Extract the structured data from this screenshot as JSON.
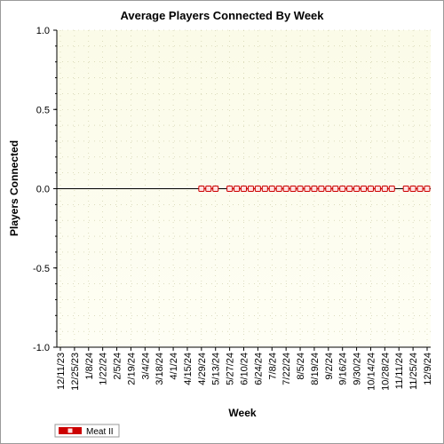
{
  "chart_data": {
    "type": "line",
    "title": "Average Players Connected By Week",
    "xlabel": "Week",
    "ylabel": "Players Connected",
    "ylim": [
      -1.0,
      1.0
    ],
    "y_ticks": [
      "1.0",
      "0.5",
      "0.0",
      "-0.5",
      "-1.0"
    ],
    "y_tick_values": [
      1.0,
      0.5,
      0.0,
      -0.5,
      -1.0
    ],
    "x_tick_labels": [
      "12/11/23",
      "12/25/23",
      "1/8/24",
      "1/22/24",
      "2/5/24",
      "2/19/24",
      "3/4/24",
      "3/18/24",
      "4/1/24",
      "4/15/24",
      "4/29/24",
      "5/13/24",
      "5/27/24",
      "6/10/24",
      "6/24/24",
      "7/8/24",
      "7/22/24",
      "8/5/24",
      "8/19/24",
      "9/2/24",
      "9/16/24",
      "9/30/24",
      "10/14/24",
      "10/28/24",
      "11/11/24",
      "11/25/24",
      "12/9/24"
    ],
    "grid": true,
    "legend_position": "bottom-left",
    "colors": {
      "plot_background_top": "#fbfbe8",
      "plot_background_bottom": "#fefef4",
      "series": "#cc0000",
      "marker_fill": "#ffe0e0",
      "grid": "#c8c8a0"
    },
    "series": [
      {
        "name": "Meat II",
        "x": [
          "4/29/24",
          "5/6/24",
          "5/13/24",
          "5/27/24",
          "6/3/24",
          "6/10/24",
          "6/17/24",
          "6/24/24",
          "7/1/24",
          "7/8/24",
          "7/15/24",
          "7/22/24",
          "7/29/24",
          "8/5/24",
          "8/12/24",
          "8/19/24",
          "8/26/24",
          "9/2/24",
          "9/9/24",
          "9/16/24",
          "9/23/24",
          "9/30/24",
          "10/7/24",
          "10/14/24",
          "10/21/24",
          "10/28/24",
          "11/4/24",
          "11/18/24",
          "11/25/24",
          "12/2/24",
          "12/9/24"
        ],
        "values": [
          0,
          0,
          0,
          0,
          0,
          0,
          0,
          0,
          0,
          0,
          0,
          0,
          0,
          0,
          0,
          0,
          0,
          0,
          0,
          0,
          0,
          0,
          0,
          0,
          0,
          0,
          0,
          0,
          0,
          0,
          0
        ]
      }
    ]
  }
}
